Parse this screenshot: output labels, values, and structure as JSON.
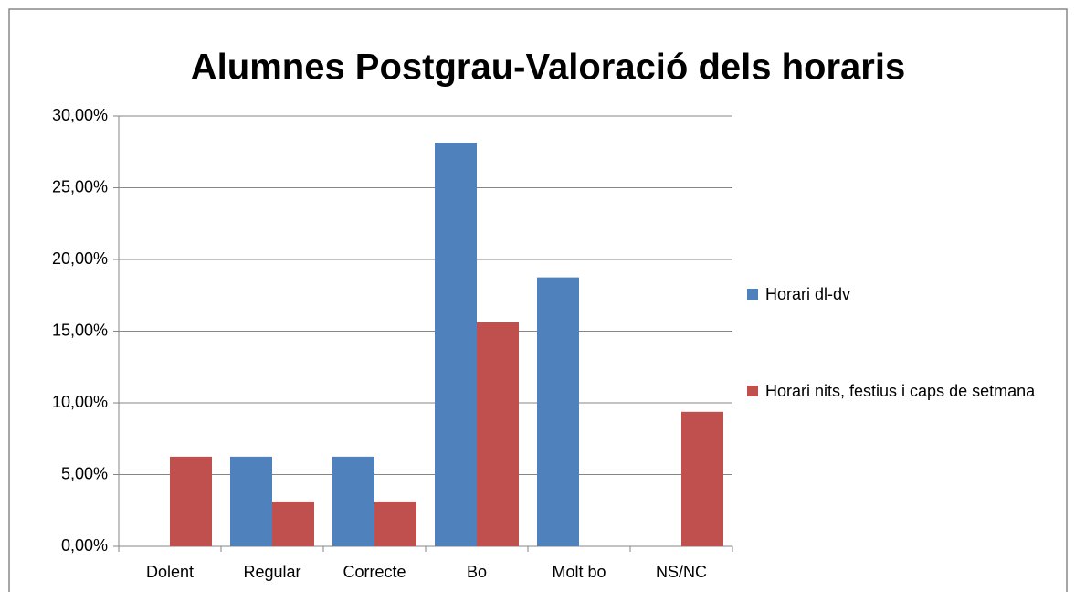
{
  "chart_data": {
    "type": "bar",
    "title": "Alumnes Postgrau-Valoració dels horaris",
    "categories": [
      "Dolent",
      "Regular",
      "Correcte",
      "Bo",
      "Molt bo",
      "NS/NC"
    ],
    "series": [
      {
        "name": "Horari dl-dv",
        "color": "#4f81bd",
        "values": [
          0,
          6.25,
          6.25,
          28.125,
          18.75,
          0
        ]
      },
      {
        "name": "Horari nits, festius i caps de setmana",
        "color": "#c0504d",
        "values": [
          6.25,
          3.125,
          3.125,
          15.625,
          0,
          9.375
        ]
      }
    ],
    "ylim": [
      0,
      30
    ],
    "yticks": [
      {
        "value": 0,
        "label": "0,00%"
      },
      {
        "value": 5,
        "label": "5,00%"
      },
      {
        "value": 10,
        "label": "10,00%"
      },
      {
        "value": 15,
        "label": "15,00%"
      },
      {
        "value": 20,
        "label": "20,00%"
      },
      {
        "value": 25,
        "label": "25,00%"
      },
      {
        "value": 30,
        "label": "30,00%"
      }
    ],
    "grid": true,
    "legend": "right"
  }
}
